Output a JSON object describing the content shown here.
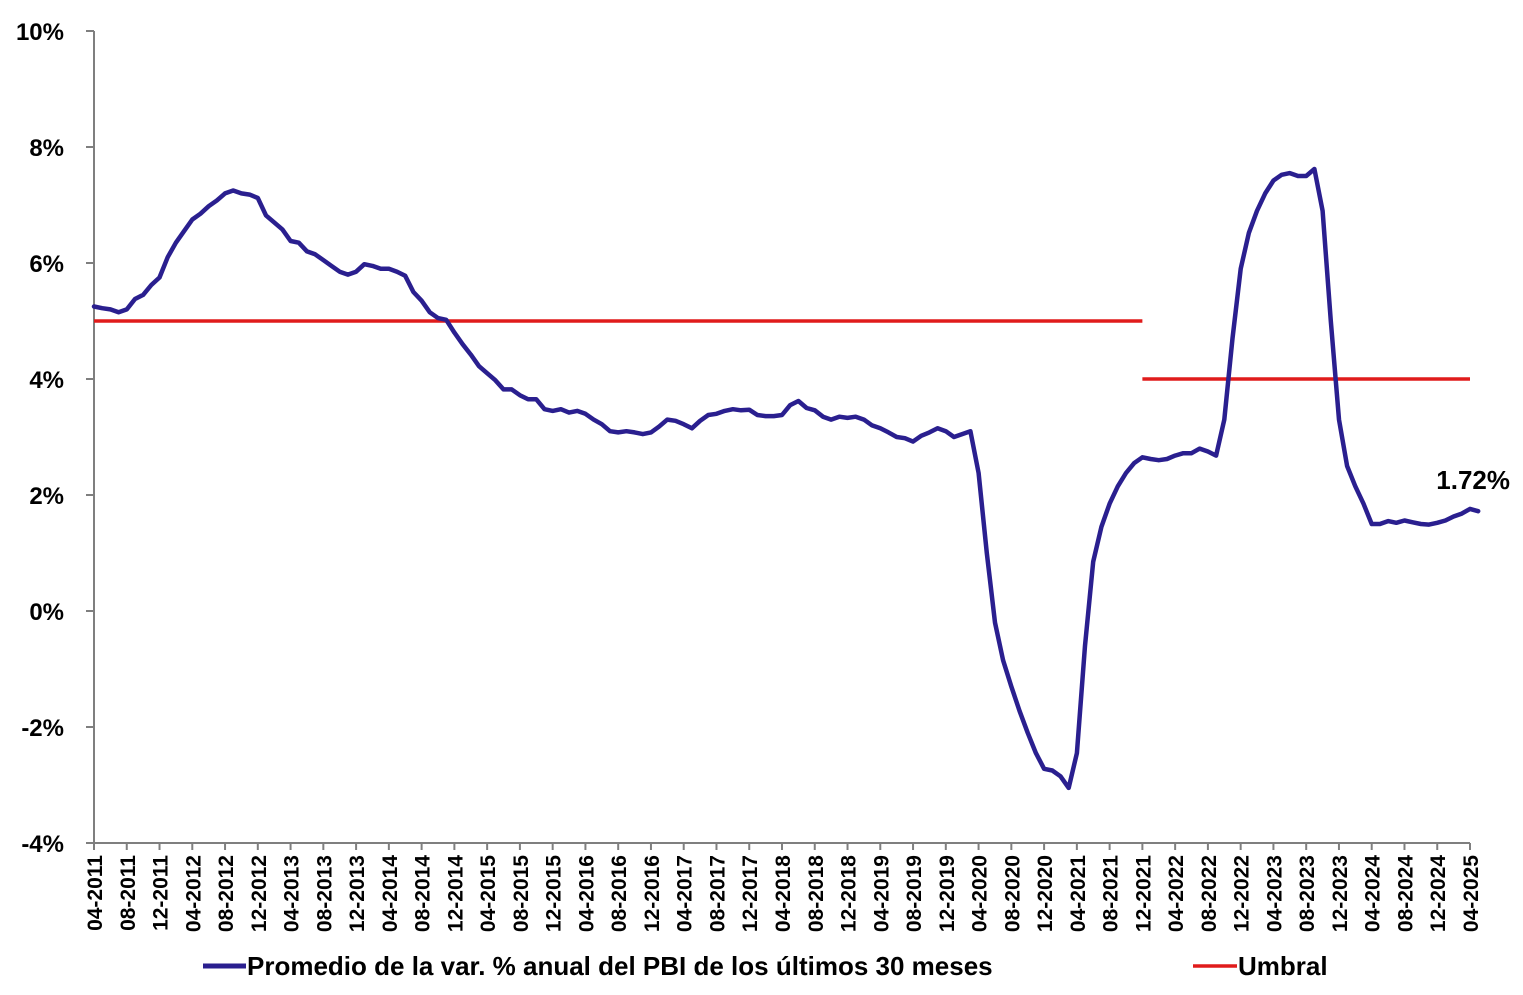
{
  "chart_data": {
    "type": "line",
    "ylim": [
      -4,
      10
    ],
    "yticks": [
      -4,
      -2,
      0,
      2,
      4,
      6,
      8,
      10
    ],
    "ytick_labels": [
      "-4%",
      "-2%",
      "0%",
      "2%",
      "4%",
      "6%",
      "8%",
      "10%"
    ],
    "x_start": "2011-04",
    "x_end": "2025-04",
    "xtick_labels": [
      "04-2011",
      "08-2011",
      "12-2011",
      "04-2012",
      "08-2012",
      "12-2012",
      "04-2013",
      "08-2013",
      "12-2013",
      "04-2014",
      "08-2014",
      "12-2014",
      "04-2015",
      "08-2015",
      "12-2015",
      "04-2016",
      "08-2016",
      "12-2016",
      "04-2017",
      "08-2017",
      "12-2017",
      "04-2018",
      "08-2018",
      "12-2018",
      "04-2019",
      "08-2019",
      "12-2019",
      "04-2020",
      "08-2020",
      "12-2020",
      "04-2021",
      "08-2021",
      "12-2021",
      "04-2022",
      "08-2022",
      "12-2022",
      "04-2023",
      "08-2023",
      "12-2023",
      "04-2024",
      "08-2024",
      "12-2024",
      "04-2025"
    ],
    "grid": false,
    "legend_position": "bottom",
    "series": [
      {
        "name": "Promedio de la var. % anual del PBI de los últimos 30 meses",
        "color": "#2a1f8f",
        "values": [
          5.25,
          5.22,
          5.2,
          5.15,
          5.2,
          5.38,
          5.45,
          5.62,
          5.75,
          6.1,
          6.35,
          6.55,
          6.75,
          6.85,
          6.98,
          7.08,
          7.2,
          7.25,
          7.2,
          7.18,
          7.12,
          6.82,
          6.7,
          6.58,
          6.38,
          6.35,
          6.2,
          6.15,
          6.05,
          5.95,
          5.85,
          5.8,
          5.85,
          5.98,
          5.95,
          5.9,
          5.9,
          5.85,
          5.78,
          5.5,
          5.35,
          5.15,
          5.05,
          5.02,
          4.8,
          4.6,
          4.42,
          4.22,
          4.1,
          3.98,
          3.82,
          3.82,
          3.72,
          3.65,
          3.65,
          3.48,
          3.45,
          3.48,
          3.42,
          3.45,
          3.4,
          3.3,
          3.22,
          3.1,
          3.08,
          3.1,
          3.08,
          3.05,
          3.08,
          3.18,
          3.3,
          3.28,
          3.22,
          3.15,
          3.28,
          3.38,
          3.4,
          3.45,
          3.48,
          3.46,
          3.47,
          3.38,
          3.36,
          3.36,
          3.38,
          3.55,
          3.62,
          3.5,
          3.46,
          3.35,
          3.3,
          3.35,
          3.33,
          3.35,
          3.3,
          3.2,
          3.15,
          3.08,
          3.0,
          2.98,
          2.92,
          3.02,
          3.08,
          3.15,
          3.1,
          3.0,
          3.05,
          3.1,
          2.38,
          1.0,
          -0.2,
          -0.85,
          -1.3,
          -1.72,
          -2.1,
          -2.45,
          -2.72,
          -2.75,
          -2.85,
          -3.05,
          -2.45,
          -0.6,
          0.85,
          1.45,
          1.85,
          2.15,
          2.38,
          2.55,
          2.65,
          2.62,
          2.6,
          2.62,
          2.68,
          2.72,
          2.72,
          2.8,
          2.75,
          2.68,
          3.3,
          4.7,
          5.9,
          6.52,
          6.9,
          7.2,
          7.42,
          7.52,
          7.55,
          7.5,
          7.5,
          7.62,
          6.9,
          5.0,
          3.3,
          2.5,
          2.15,
          1.85,
          1.5,
          1.5,
          1.55,
          1.52,
          1.56,
          1.53,
          1.5,
          1.49,
          1.52,
          1.56,
          1.63,
          1.68,
          1.76,
          1.72
        ]
      },
      {
        "name": "Umbral",
        "color": "#e01b1b",
        "segments": [
          {
            "from": "2011-04",
            "to": "2021-12",
            "value": 5.0
          },
          {
            "from": "2021-12",
            "to": "2025-04",
            "value": 4.0
          }
        ]
      }
    ],
    "annotations": [
      {
        "text": "1.72%",
        "x": "2025-04",
        "y": 1.72
      }
    ]
  }
}
